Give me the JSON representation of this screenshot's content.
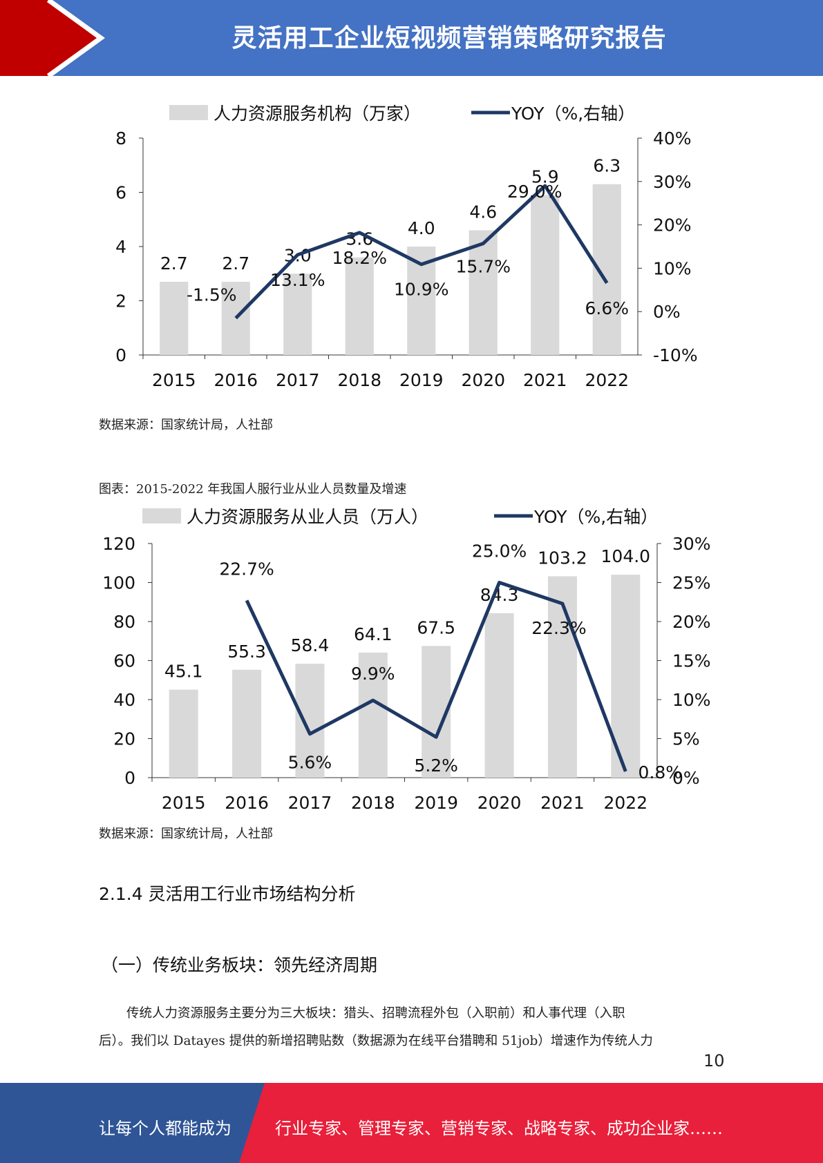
{
  "header": {
    "title": "灵活用工企业短视频营销策略研究报告"
  },
  "colors": {
    "blue": "#4472c4",
    "red": "#c00000",
    "footer_blue": "#2f5597",
    "footer_red": "#e8203b",
    "bar": "#d9d9d9",
    "line": "#1f3864"
  },
  "chart_data": [
    {
      "type": "bar",
      "legend": {
        "bar": "人力资源服务机构（万家）",
        "line": "YOY（%,右轴）"
      },
      "categories": [
        "2015",
        "2016",
        "2017",
        "2018",
        "2019",
        "2020",
        "2021",
        "2022"
      ],
      "series": [
        {
          "name": "人力资源服务机构（万家）",
          "type": "bar",
          "values": [
            2.7,
            2.7,
            3.0,
            3.6,
            4.0,
            4.6,
            5.9,
            6.3
          ],
          "labels": [
            "2.7",
            "2.7",
            "3.0",
            "3.6",
            "4.0",
            "4.6",
            "5.9",
            "6.3"
          ]
        },
        {
          "name": "YOY（%,右轴）",
          "type": "line",
          "axis": "right",
          "values": [
            null,
            -1.5,
            13.1,
            18.2,
            10.9,
            15.7,
            29.0,
            6.6
          ],
          "labels": [
            "",
            "-1.5%",
            "13.1%",
            "18.2%",
            "10.9%",
            "15.7%",
            "29.0%",
            "6.6%"
          ]
        }
      ],
      "ylim": [
        0,
        8
      ],
      "y2lim": [
        -10,
        40
      ],
      "yticks": [
        "0",
        "2",
        "4",
        "6",
        "8"
      ],
      "y2ticks": [
        "-10%",
        "0%",
        "10%",
        "20%",
        "30%",
        "40%"
      ]
    },
    {
      "type": "bar",
      "legend": {
        "bar": "人力资源服务从业人员（万人）",
        "line": "YOY（%,右轴）"
      },
      "categories": [
        "2015",
        "2016",
        "2017",
        "2018",
        "2019",
        "2020",
        "2021",
        "2022"
      ],
      "series": [
        {
          "name": "人力资源服务从业人员（万人）",
          "type": "bar",
          "values": [
            45.1,
            55.3,
            58.4,
            64.1,
            67.5,
            84.3,
            103.2,
            104.0
          ],
          "labels": [
            "45.1",
            "55.3",
            "58.4",
            "64.1",
            "67.5",
            "84.3",
            "103.2",
            "104.0"
          ]
        },
        {
          "name": "YOY（%,右轴）",
          "type": "line",
          "axis": "right",
          "values": [
            null,
            22.7,
            5.6,
            9.9,
            5.2,
            25.0,
            22.3,
            0.8
          ],
          "labels": [
            "",
            "22.7%",
            "5.6%",
            "9.9%",
            "5.2%",
            "25.0%",
            "22.3%",
            "0.8%"
          ]
        }
      ],
      "ylim": [
        0,
        120
      ],
      "y2lim": [
        0,
        30
      ],
      "yticks": [
        "0",
        "20",
        "40",
        "60",
        "80",
        "100",
        "120"
      ],
      "y2ticks": [
        "0%",
        "5%",
        "10%",
        "15%",
        "20%",
        "25%",
        "30%"
      ]
    }
  ],
  "notes": {
    "source1": "数据来源：国家统计局，人社部",
    "caption2": "图表：2015-2022 年我国人服行业从业人员数量及增速",
    "source2": "数据来源：国家统计局，人社部"
  },
  "sections": {
    "h1": "2.1.4 灵活用工行业市场结构分析",
    "h2": "（一）传统业务板块：领先经济周期"
  },
  "paragraph": {
    "line1": "传统人力资源服务主要分为三大板块：猎头、招聘流程外包（入职前）和人事代理（入职",
    "line2": "后）。我们以 Datayes 提供的新增招聘贴数（数据源为在线平台猎聘和 51job）增速作为传统人力"
  },
  "page_number": "10",
  "footer": {
    "left": "让每个人都能成为",
    "right": "行业专家、管理专家、营销专家、战略专家、成功企业家……"
  }
}
